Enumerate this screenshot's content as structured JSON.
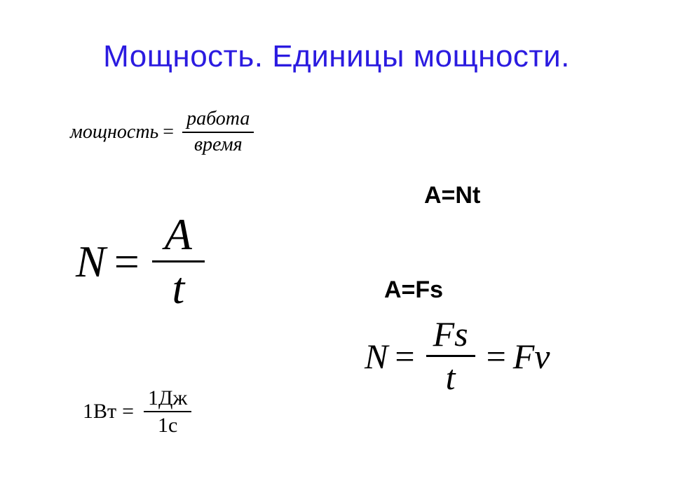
{
  "title": {
    "text": "Мощность. Единицы мощности.",
    "color": "#2b1be0",
    "font_size_pt": 33
  },
  "equations": {
    "words": {
      "lhs": "мощность",
      "eq": "=",
      "num": "работа",
      "den": "время",
      "font_size_pt": 21,
      "style": "italic-serif"
    },
    "A_Nt": {
      "text": "A=Nt",
      "font_size_pt": 26,
      "style": "bold-sans"
    },
    "N_A_over_t": {
      "lhs": "N",
      "eq": "=",
      "num": "A",
      "den": "t",
      "font_size_pt": 48,
      "style": "italic-serif"
    },
    "A_Fs": {
      "text": "A=Fs",
      "font_size_pt": 26,
      "style": "bold-sans"
    },
    "N_Fs_over_t": {
      "lhs": "N",
      "eq1": "=",
      "num": "Fs",
      "den": "t",
      "eq2": "=",
      "rhs": "Fv",
      "font_size_pt": 38,
      "style": "italic-serif"
    },
    "one_watt": {
      "lhs": "1Вт",
      "eq": "=",
      "num": "1Дж",
      "den": "1с",
      "font_size_pt": 23,
      "style": "roman-serif"
    }
  },
  "colors": {
    "background": "#ffffff",
    "text": "#000000",
    "title": "#2b1be0"
  }
}
